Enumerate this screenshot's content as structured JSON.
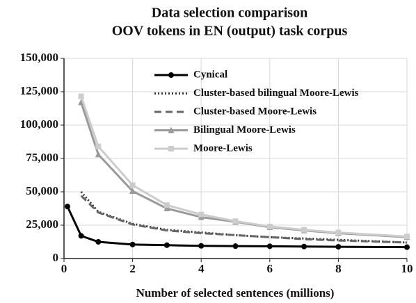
{
  "chart_data": {
    "type": "line",
    "title": "Data selection comparison",
    "subtitle": "OOV tokens in EN (output) task corpus",
    "x_label": "Number of selected sentences (millions)",
    "xlim": [
      0,
      10
    ],
    "xticks": [
      0,
      2,
      4,
      6,
      8,
      10
    ],
    "ylim": [
      0,
      150000
    ],
    "yticks": [
      {
        "value": 0,
        "label": "0"
      },
      {
        "value": 25000,
        "label": "25,000"
      },
      {
        "value": 50000,
        "label": "50,000"
      },
      {
        "value": 75000,
        "label": "75,000"
      },
      {
        "value": 100000,
        "label": "100,000"
      },
      {
        "value": 125000,
        "label": "125,000"
      },
      {
        "value": 150000,
        "label": "150,000"
      }
    ],
    "grid": true,
    "legend": "upper right",
    "series": [
      {
        "name": "Cynical",
        "color": "#000000",
        "style": "solid",
        "marker": "circle",
        "x": [
          0.1,
          0.5,
          1,
          2,
          3,
          4,
          5,
          6,
          7,
          8,
          10
        ],
        "values": [
          39000,
          17000,
          12500,
          10500,
          10000,
          9500,
          9300,
          9200,
          9000,
          8800,
          8500
        ]
      },
      {
        "name": "Cluster-based bilingual Moore-Lewis",
        "color": "#333333",
        "style": "dotted",
        "marker": "none",
        "x": [
          0.5,
          1,
          2,
          3,
          4,
          5,
          6,
          7,
          8,
          10
        ],
        "values": [
          50000,
          35000,
          26000,
          21500,
          19500,
          17500,
          16000,
          15000,
          14000,
          12000
        ]
      },
      {
        "name": "Cluster-based Moore-Lewis",
        "color": "#666666",
        "style": "dashed",
        "marker": "none",
        "x": [
          0.5,
          1,
          2,
          3,
          4,
          5,
          6,
          7,
          8,
          10
        ],
        "values": [
          47000,
          34500,
          25500,
          21000,
          19000,
          17500,
          16000,
          14500,
          13500,
          12000
        ]
      },
      {
        "name": "Bilingual Moore-Lewis",
        "color": "#999999",
        "style": "solid",
        "marker": "triangle",
        "x": [
          0.5,
          1,
          2,
          3,
          4,
          5,
          6,
          7,
          8,
          10
        ],
        "values": [
          117000,
          78000,
          50500,
          37500,
          31000,
          27500,
          23500,
          21000,
          19000,
          16000
        ]
      },
      {
        "name": "Moore-Lewis",
        "color": "#cccccc",
        "style": "solid",
        "marker": "square",
        "x": [
          0.5,
          1,
          2,
          3,
          4,
          5,
          6,
          7,
          8,
          10
        ],
        "values": [
          121500,
          84000,
          55000,
          40000,
          33000,
          28000,
          24000,
          21500,
          19500,
          16500
        ]
      }
    ]
  }
}
